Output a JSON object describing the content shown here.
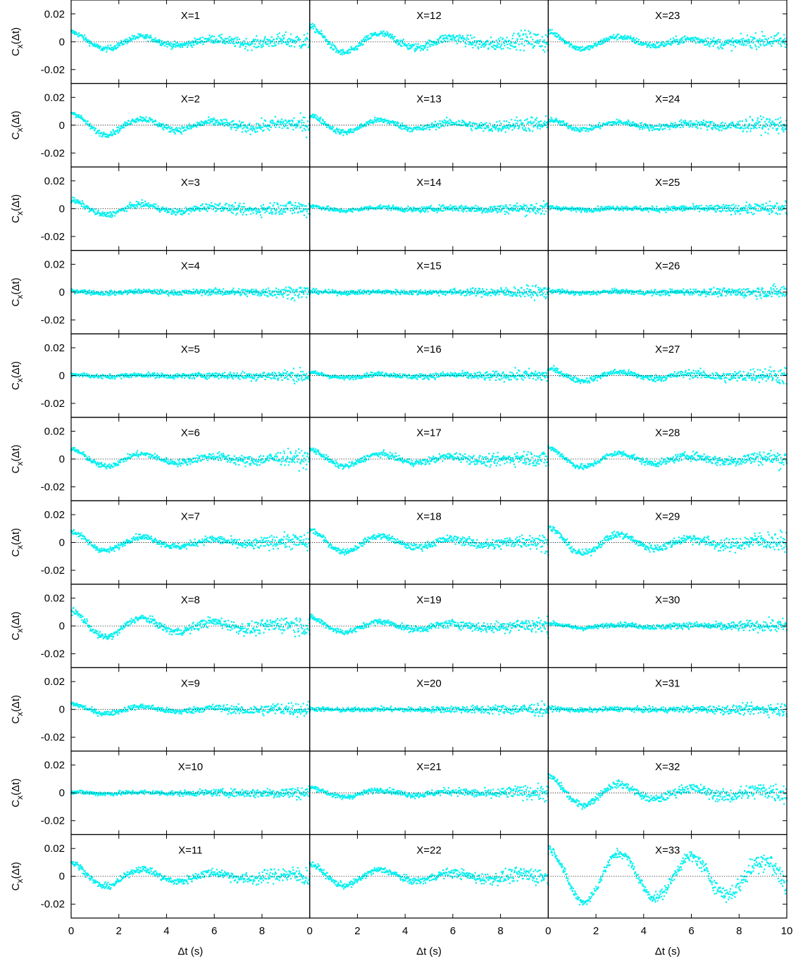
{
  "chart_data": {
    "type": "scatter",
    "layout": "grid of 33 panels, 11 rows x 3 columns, shared axes",
    "ylabel": "C",
    "ylabel_sub": "x",
    "ylabel_paren": "(Δt)",
    "xlabel": "Δt (s)",
    "xlim": [
      0,
      10
    ],
    "ylim": [
      -0.03,
      0.03
    ],
    "xticks": [
      0,
      2,
      4,
      6,
      8
    ],
    "xticks_last_col": [
      0,
      2,
      4,
      6,
      8,
      10
    ],
    "yticks": [
      0.02,
      0,
      -0.02
    ],
    "ytick_labels": [
      "0.02",
      "0",
      "-0.02"
    ],
    "zero_line": "dotted black",
    "marker_color": "#00f0f0",
    "period": 3.0,
    "panels": [
      {
        "label": "X=1",
        "amp": 0.007,
        "noise": 0.001
      },
      {
        "label": "X=12",
        "amp": 0.011,
        "noise": 0.0012
      },
      {
        "label": "X=23",
        "amp": 0.007,
        "noise": 0.001
      },
      {
        "label": "X=2",
        "amp": 0.009,
        "noise": 0.001
      },
      {
        "label": "X=13",
        "amp": 0.007,
        "noise": 0.001
      },
      {
        "label": "X=24",
        "amp": 0.004,
        "noise": 0.001
      },
      {
        "label": "X=3",
        "amp": 0.006,
        "noise": 0.001
      },
      {
        "label": "X=14",
        "amp": 0.002,
        "noise": 0.0008
      },
      {
        "label": "X=25",
        "amp": 0.001,
        "noise": 0.0008
      },
      {
        "label": "X=4",
        "amp": 0.001,
        "noise": 0.0008
      },
      {
        "label": "X=15",
        "amp": 0.0005,
        "noise": 0.0008
      },
      {
        "label": "X=26",
        "amp": 0.001,
        "noise": 0.0008
      },
      {
        "label": "X=5",
        "amp": 0.001,
        "noise": 0.0008
      },
      {
        "label": "X=16",
        "amp": 0.002,
        "noise": 0.0008
      },
      {
        "label": "X=27",
        "amp": 0.005,
        "noise": 0.001
      },
      {
        "label": "X=6",
        "amp": 0.007,
        "noise": 0.001
      },
      {
        "label": "X=17",
        "amp": 0.007,
        "noise": 0.001
      },
      {
        "label": "X=28",
        "amp": 0.008,
        "noise": 0.001
      },
      {
        "label": "X=7",
        "amp": 0.008,
        "noise": 0.001
      },
      {
        "label": "X=18",
        "amp": 0.009,
        "noise": 0.001
      },
      {
        "label": "X=29",
        "amp": 0.011,
        "noise": 0.0012
      },
      {
        "label": "X=8",
        "amp": 0.011,
        "noise": 0.0012
      },
      {
        "label": "X=19",
        "amp": 0.006,
        "noise": 0.001
      },
      {
        "label": "X=30",
        "amp": 0.002,
        "noise": 0.0008
      },
      {
        "label": "X=9",
        "amp": 0.004,
        "noise": 0.0009
      },
      {
        "label": "X=20",
        "amp": 0.0005,
        "noise": 0.0008
      },
      {
        "label": "X=31",
        "amp": 0.0008,
        "noise": 0.0008
      },
      {
        "label": "X=10",
        "amp": 0.0008,
        "noise": 0.0008
      },
      {
        "label": "X=21",
        "amp": 0.004,
        "noise": 0.0009
      },
      {
        "label": "X=32",
        "amp": 0.012,
        "noise": 0.0012
      },
      {
        "label": "X=11",
        "amp": 0.01,
        "noise": 0.0011
      },
      {
        "label": "X=22",
        "amp": 0.009,
        "noise": 0.0011
      },
      {
        "label": "X=33",
        "amp": 0.02,
        "noise": 0.0015
      }
    ]
  }
}
